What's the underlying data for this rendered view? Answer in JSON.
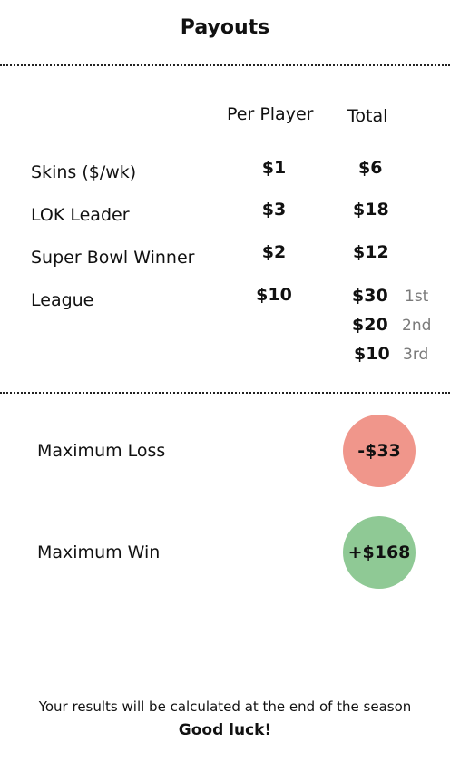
{
  "header": {
    "title": "Payouts"
  },
  "table": {
    "col_per_player": "Per Player",
    "col_total": "Total",
    "rows": [
      {
        "label": "Skins ($/wk)",
        "per_player": "$1",
        "total": "$6"
      },
      {
        "label": "LOK Leader",
        "per_player": "$3",
        "total": "$18"
      },
      {
        "label": "Super Bowl Winner",
        "per_player": "$2",
        "total": "$12"
      },
      {
        "label": "League",
        "per_player": "$10",
        "places": [
          {
            "total": "$30",
            "place": "1st"
          },
          {
            "total": "$20",
            "place": "2nd"
          },
          {
            "total": "$10",
            "place": "3rd"
          }
        ]
      }
    ]
  },
  "results": {
    "max_loss_label": "Maximum Loss",
    "max_loss_value": "-$33",
    "max_loss_color": "#f0968b",
    "max_win_label": "Maximum Win",
    "max_win_value": "+$168",
    "max_win_color": "#8fc995"
  },
  "footer": {
    "note": "Your results will be calculated at the end of the season",
    "luck": "Good luck!"
  }
}
